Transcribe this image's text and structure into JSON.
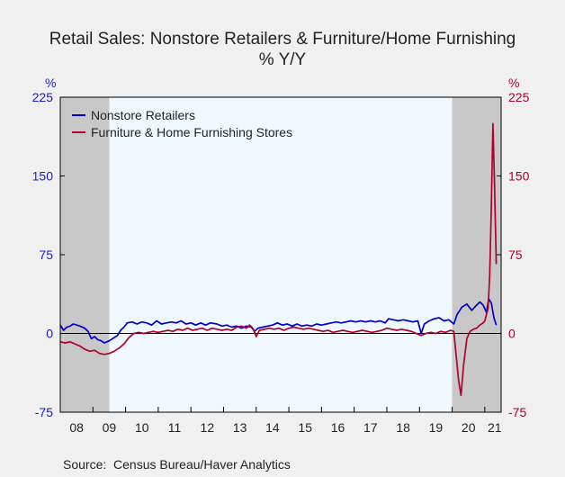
{
  "chart_data": {
    "type": "line",
    "title": "Retail Sales: Nonstore Retailers & Furniture/Home Furnishing",
    "subtitle": "% Y/Y",
    "left_unit": "%",
    "right_unit": "%",
    "source": "Source:  Census Bureau/Haver Analytics",
    "ylim": [
      -75,
      225
    ],
    "yticks": [
      -75,
      0,
      75,
      150,
      225
    ],
    "y_tick_labels": [
      "-75",
      "0",
      "75",
      "150",
      "225"
    ],
    "xlim": [
      2008.0,
      2021.5
    ],
    "x_tick_labels": [
      "08",
      "09",
      "10",
      "11",
      "12",
      "13",
      "14",
      "15",
      "16",
      "17",
      "18",
      "19",
      "20",
      "21"
    ],
    "x_tick_positions": [
      2008.5,
      2009.5,
      2010.5,
      2011.5,
      2012.5,
      2013.5,
      2014.5,
      2015.5,
      2016.5,
      2017.5,
      2018.5,
      2019.5,
      2020.5,
      2021.3
    ],
    "recessions": [
      [
        2008.0,
        2009.5
      ],
      [
        2020.0,
        2021.5
      ]
    ],
    "grid": false,
    "legend_position": "top-left",
    "colors": {
      "nonstore": "#0000cc",
      "furniture": "#b0002a",
      "recession": "#c8c8c8",
      "plot_bg": "#f0f8ff",
      "left_axis": "#1a1acc",
      "right_axis": "#b0002a"
    },
    "series": [
      {
        "name": "Nonstore Retailers",
        "color": "#0000cc",
        "points": [
          [
            2008.0,
            8
          ],
          [
            2008.1,
            3
          ],
          [
            2008.2,
            6
          ],
          [
            2008.3,
            7
          ],
          [
            2008.4,
            9
          ],
          [
            2008.6,
            7
          ],
          [
            2008.75,
            5
          ],
          [
            2008.85,
            2
          ],
          [
            2008.95,
            -5
          ],
          [
            2009.05,
            -3
          ],
          [
            2009.15,
            -6
          ],
          [
            2009.25,
            -7
          ],
          [
            2009.35,
            -9
          ],
          [
            2009.5,
            -7
          ],
          [
            2009.6,
            -5
          ],
          [
            2009.75,
            -2
          ],
          [
            2009.85,
            3
          ],
          [
            2009.95,
            6
          ],
          [
            2010.05,
            10
          ],
          [
            2010.2,
            11
          ],
          [
            2010.35,
            9
          ],
          [
            2010.5,
            11
          ],
          [
            2010.65,
            10
          ],
          [
            2010.8,
            8
          ],
          [
            2010.95,
            12
          ],
          [
            2011.1,
            9
          ],
          [
            2011.25,
            10
          ],
          [
            2011.4,
            11
          ],
          [
            2011.55,
            10
          ],
          [
            2011.7,
            12
          ],
          [
            2011.85,
            9
          ],
          [
            2012.0,
            10
          ],
          [
            2012.15,
            8
          ],
          [
            2012.3,
            10
          ],
          [
            2012.45,
            8
          ],
          [
            2012.6,
            10
          ],
          [
            2012.8,
            9
          ],
          [
            2012.95,
            7
          ],
          [
            2013.1,
            8
          ],
          [
            2013.25,
            6
          ],
          [
            2013.4,
            7
          ],
          [
            2013.55,
            5
          ],
          [
            2013.7,
            7
          ],
          [
            2013.85,
            6
          ],
          [
            2013.95,
            2
          ],
          [
            2014.05,
            5
          ],
          [
            2014.2,
            6
          ],
          [
            2014.35,
            7
          ],
          [
            2014.5,
            8
          ],
          [
            2014.65,
            10
          ],
          [
            2014.8,
            8
          ],
          [
            2014.95,
            9
          ],
          [
            2015.1,
            7
          ],
          [
            2015.25,
            9
          ],
          [
            2015.4,
            7
          ],
          [
            2015.55,
            8
          ],
          [
            2015.7,
            7
          ],
          [
            2015.85,
            9
          ],
          [
            2016.0,
            8
          ],
          [
            2016.15,
            9
          ],
          [
            2016.3,
            10
          ],
          [
            2016.45,
            11
          ],
          [
            2016.6,
            10
          ],
          [
            2016.75,
            11
          ],
          [
            2016.9,
            12
          ],
          [
            2017.05,
            11
          ],
          [
            2017.2,
            12
          ],
          [
            2017.35,
            11
          ],
          [
            2017.5,
            12
          ],
          [
            2017.65,
            11
          ],
          [
            2017.8,
            12
          ],
          [
            2017.95,
            10
          ],
          [
            2018.05,
            14
          ],
          [
            2018.2,
            13
          ],
          [
            2018.35,
            12
          ],
          [
            2018.5,
            13
          ],
          [
            2018.65,
            12
          ],
          [
            2018.8,
            11
          ],
          [
            2018.95,
            12
          ],
          [
            2019.05,
            0
          ],
          [
            2019.15,
            9
          ],
          [
            2019.3,
            12
          ],
          [
            2019.45,
            14
          ],
          [
            2019.6,
            15
          ],
          [
            2019.75,
            12
          ],
          [
            2019.9,
            13
          ],
          [
            2020.05,
            9
          ],
          [
            2020.15,
            18
          ],
          [
            2020.3,
            25
          ],
          [
            2020.45,
            28
          ],
          [
            2020.6,
            22
          ],
          [
            2020.75,
            27
          ],
          [
            2020.85,
            30
          ],
          [
            2020.95,
            27
          ],
          [
            2021.05,
            20
          ],
          [
            2021.12,
            33
          ],
          [
            2021.2,
            29
          ],
          [
            2021.28,
            15
          ],
          [
            2021.35,
            8
          ]
        ]
      },
      {
        "name": "Furniture & Home Furnishing Stores",
        "color": "#b0002a",
        "points": [
          [
            2008.0,
            -8
          ],
          [
            2008.15,
            -9
          ],
          [
            2008.3,
            -8
          ],
          [
            2008.45,
            -10
          ],
          [
            2008.6,
            -12
          ],
          [
            2008.75,
            -15
          ],
          [
            2008.9,
            -17
          ],
          [
            2009.05,
            -16
          ],
          [
            2009.2,
            -19
          ],
          [
            2009.35,
            -20
          ],
          [
            2009.5,
            -19
          ],
          [
            2009.65,
            -17
          ],
          [
            2009.8,
            -14
          ],
          [
            2009.95,
            -10
          ],
          [
            2010.1,
            -4
          ],
          [
            2010.25,
            0
          ],
          [
            2010.4,
            1
          ],
          [
            2010.55,
            0
          ],
          [
            2010.7,
            1
          ],
          [
            2010.85,
            2
          ],
          [
            2011.0,
            1
          ],
          [
            2011.15,
            2
          ],
          [
            2011.3,
            3
          ],
          [
            2011.45,
            2
          ],
          [
            2011.6,
            4
          ],
          [
            2011.75,
            3
          ],
          [
            2011.9,
            5
          ],
          [
            2012.05,
            3
          ],
          [
            2012.2,
            4
          ],
          [
            2012.35,
            5
          ],
          [
            2012.5,
            3
          ],
          [
            2012.65,
            5
          ],
          [
            2012.8,
            4
          ],
          [
            2012.95,
            3
          ],
          [
            2013.1,
            4
          ],
          [
            2013.25,
            3
          ],
          [
            2013.4,
            6
          ],
          [
            2013.55,
            7
          ],
          [
            2013.7,
            5
          ],
          [
            2013.8,
            8
          ],
          [
            2013.9,
            5
          ],
          [
            2014.0,
            -3
          ],
          [
            2014.1,
            3
          ],
          [
            2014.25,
            4
          ],
          [
            2014.4,
            5
          ],
          [
            2014.55,
            4
          ],
          [
            2014.7,
            5
          ],
          [
            2014.85,
            3
          ],
          [
            2015.0,
            5
          ],
          [
            2015.15,
            6
          ],
          [
            2015.3,
            5
          ],
          [
            2015.45,
            4
          ],
          [
            2015.6,
            5
          ],
          [
            2015.75,
            4
          ],
          [
            2015.9,
            3
          ],
          [
            2016.05,
            2
          ],
          [
            2016.2,
            3
          ],
          [
            2016.35,
            1
          ],
          [
            2016.5,
            2
          ],
          [
            2016.65,
            3
          ],
          [
            2016.8,
            2
          ],
          [
            2016.95,
            1
          ],
          [
            2017.1,
            2
          ],
          [
            2017.25,
            3
          ],
          [
            2017.4,
            2
          ],
          [
            2017.55,
            1
          ],
          [
            2017.7,
            2
          ],
          [
            2017.85,
            3
          ],
          [
            2018.0,
            5
          ],
          [
            2018.15,
            4
          ],
          [
            2018.3,
            3
          ],
          [
            2018.45,
            4
          ],
          [
            2018.6,
            3
          ],
          [
            2018.75,
            2
          ],
          [
            2018.9,
            0
          ],
          [
            2019.05,
            -2
          ],
          [
            2019.2,
            0
          ],
          [
            2019.35,
            1
          ],
          [
            2019.5,
            0
          ],
          [
            2019.65,
            2
          ],
          [
            2019.8,
            1
          ],
          [
            2019.95,
            3
          ],
          [
            2020.05,
            2
          ],
          [
            2020.12,
            -20
          ],
          [
            2020.2,
            -45
          ],
          [
            2020.27,
            -59
          ],
          [
            2020.35,
            -30
          ],
          [
            2020.45,
            -5
          ],
          [
            2020.55,
            2
          ],
          [
            2020.65,
            4
          ],
          [
            2020.75,
            5
          ],
          [
            2020.85,
            8
          ],
          [
            2020.95,
            10
          ],
          [
            2021.0,
            12
          ],
          [
            2021.05,
            18
          ],
          [
            2021.1,
            24
          ],
          [
            2021.15,
            55
          ],
          [
            2021.2,
            120
          ],
          [
            2021.25,
            200
          ],
          [
            2021.3,
            140
          ],
          [
            2021.35,
            66
          ]
        ]
      }
    ]
  }
}
